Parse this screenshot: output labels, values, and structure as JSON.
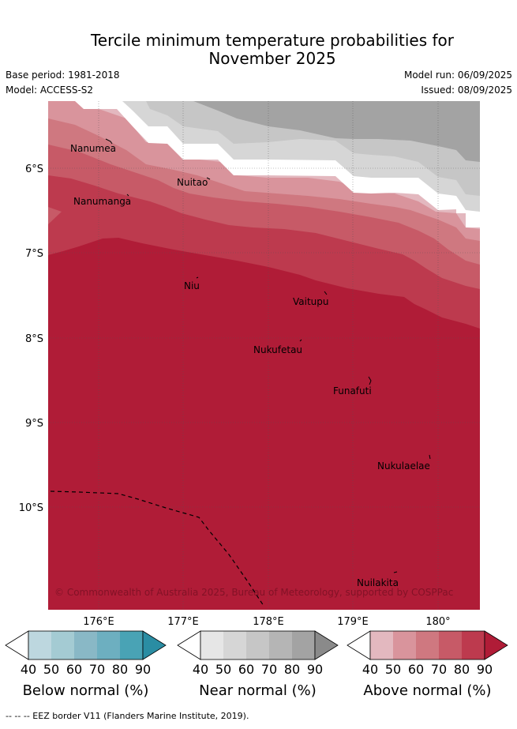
{
  "title_line1": "Tercile minimum temperature probabilities for",
  "title_line2": "November 2025",
  "base_period": "Base period: 1981-2018",
  "model": "Model: ACCESS-S2",
  "model_run": "Model run: 06/09/2025",
  "issued": "Issued: 08/09/2025",
  "map": {
    "lon_labels": [
      "176°E",
      "177°E",
      "178°E",
      "179°E",
      "180°"
    ],
    "lat_labels": [
      "6°S",
      "7°S",
      "8°S",
      "9°S",
      "10°S"
    ],
    "places": [
      {
        "name": "Nanumea"
      },
      {
        "name": "Nuitao"
      },
      {
        "name": "Nanumanga"
      },
      {
        "name": "Niu"
      },
      {
        "name": "Vaitupu"
      },
      {
        "name": "Nukufetau"
      },
      {
        "name": "Funafuti"
      },
      {
        "name": "Nukulaelae"
      },
      {
        "name": "Nuilakita"
      }
    ],
    "copyright": "© Commonwealth of Australia 2025, Bureau of Meteorology, supported by COSPPac"
  },
  "legends": [
    {
      "label": "Below normal (%)",
      "ticks": [
        "40",
        "50",
        "60",
        "70",
        "80",
        "90"
      ],
      "colors": [
        "#ffffff",
        "#bdd7df",
        "#a4cbd3",
        "#89b8c6",
        "#6dafc0",
        "#49a3b5",
        "#2a8da3"
      ]
    },
    {
      "label": "Near normal (%)",
      "ticks": [
        "40",
        "50",
        "60",
        "70",
        "80",
        "90"
      ],
      "colors": [
        "#ffffff",
        "#e6e6e6",
        "#d6d6d6",
        "#c6c6c6",
        "#b5b5b5",
        "#a3a3a3",
        "#8a8a8a"
      ]
    },
    {
      "label": "Above normal (%)",
      "ticks": [
        "40",
        "50",
        "60",
        "70",
        "80",
        "90"
      ],
      "colors": [
        "#ffffff",
        "#e3b8bf",
        "#d9949c",
        "#cf7880",
        "#c75a67",
        "#bd3a4e",
        "#b01c37"
      ]
    }
  ],
  "footnote": "--  --  -- EEZ border V11 (Flanders Marine Institute, 2019)."
}
